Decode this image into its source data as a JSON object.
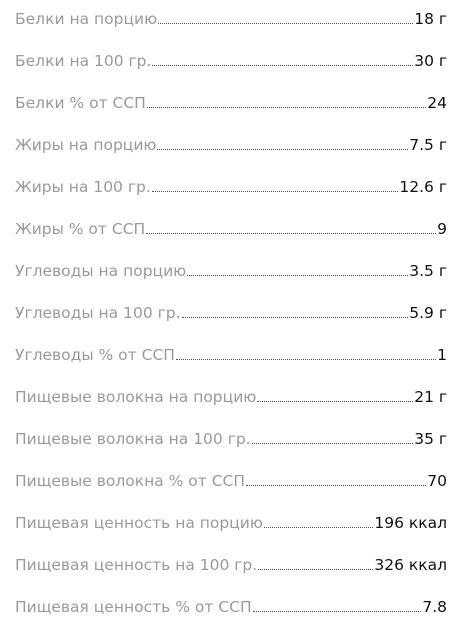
{
  "nutrition": {
    "items": [
      {
        "label": "Белки на порцию",
        "value": "18 г"
      },
      {
        "label": "Белки на 100 гр.",
        "value": "30 г"
      },
      {
        "label": "Белки % от ССП",
        "value": "24"
      },
      {
        "label": "Жиры на порцию",
        "value": "7.5 г"
      },
      {
        "label": "Жиры на 100 гр.",
        "value": "12.6 г"
      },
      {
        "label": "Жиры % от ССП",
        "value": "9"
      },
      {
        "label": "Углеводы на порцию",
        "value": "3.5 г"
      },
      {
        "label": "Углеводы на 100 гр.",
        "value": "5.9 г"
      },
      {
        "label": "Углеводы % от ССП",
        "value": "1"
      },
      {
        "label": "Пищевые волокна на порцию",
        "value": "21 г"
      },
      {
        "label": "Пищевые волокна на 100 гр.",
        "value": "35 г"
      },
      {
        "label": "Пищевые волокна % от ССП",
        "value": "70"
      },
      {
        "label": "Пищевая ценность на порцию",
        "value": "196 ккал"
      },
      {
        "label": "Пищевая ценность на 100 гр.",
        "value": "326 ккал"
      },
      {
        "label": "Пищевая ценность % от ССП",
        "value": "7.8"
      }
    ]
  }
}
